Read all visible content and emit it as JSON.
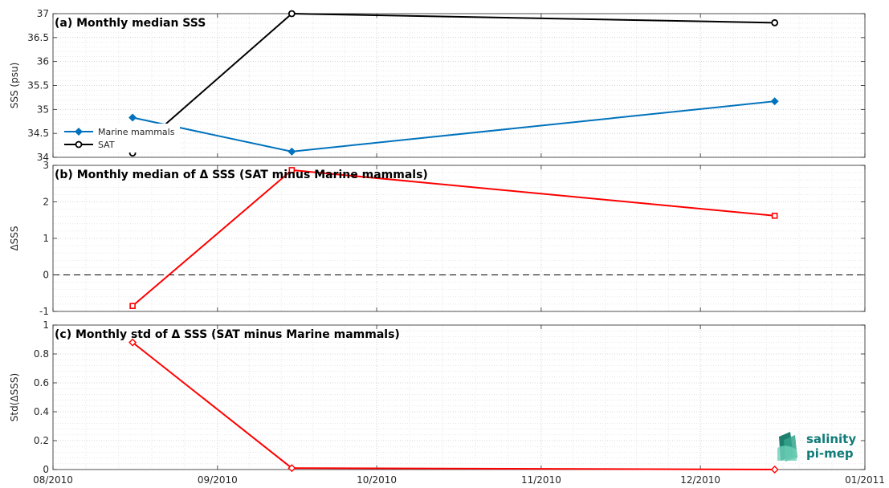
{
  "colors": {
    "blue": "#0072bd",
    "black": "#000000",
    "red": "#ff0000",
    "logo": "#0f7c78"
  },
  "logo": {
    "line1": "salinity",
    "line2": "pi-mep"
  },
  "chart_data": [
    {
      "id": "a",
      "type": "line",
      "title": "(a) Monthly median SSS",
      "ylabel": "SSS (psu)",
      "xlabel": "",
      "xlim": [
        "2010-08-01",
        "2011-01-01"
      ],
      "ylim": [
        34,
        37
      ],
      "yticks": [
        34,
        34.5,
        35,
        35.5,
        36,
        36.5,
        37
      ],
      "ytick_labels": [
        "34",
        "34.5",
        "35",
        "35.5",
        "36",
        "36.5",
        "37"
      ],
      "grid": true,
      "legend": "bottom-left",
      "series": [
        {
          "name": "Marine mammals",
          "color": "#0072bd",
          "marker": "diamond",
          "x": [
            "2010-08-16",
            "2010-09-15",
            "2010-12-15"
          ],
          "y": [
            34.83,
            34.12,
            35.17
          ]
        },
        {
          "name": "SAT",
          "color": "#000000",
          "marker": "circle",
          "x": [
            "2010-08-16",
            "2010-09-15",
            "2010-12-15"
          ],
          "y": [
            34.09,
            37.0,
            36.81
          ]
        }
      ]
    },
    {
      "id": "b",
      "type": "line",
      "title": "(b) Monthly median of Δ SSS (SAT minus Marine mammals)",
      "ylabel": "ΔSSS",
      "xlabel": "",
      "xlim": [
        "2010-08-01",
        "2011-01-01"
      ],
      "ylim": [
        -1,
        3
      ],
      "yticks": [
        -1,
        0,
        1,
        2,
        3
      ],
      "ytick_labels": [
        "-1",
        "0",
        "1",
        "2",
        "3"
      ],
      "zero_line": true,
      "grid": true,
      "series": [
        {
          "name": "",
          "color": "#ff0000",
          "marker": "square",
          "x": [
            "2010-08-16",
            "2010-09-15",
            "2010-12-15"
          ],
          "y": [
            -0.85,
            2.87,
            1.62
          ]
        }
      ]
    },
    {
      "id": "c",
      "type": "line",
      "title": "(c) Monthly std of Δ SSS (SAT minus Marine mammals)",
      "ylabel": "Std(ΔSSS)",
      "xlabel": "",
      "xlim": [
        "2010-08-01",
        "2011-01-01"
      ],
      "ylim": [
        0,
        1
      ],
      "yticks": [
        0,
        0.2,
        0.4,
        0.6,
        0.8,
        1
      ],
      "ytick_labels": [
        "0",
        "0.2",
        "0.4",
        "0.6",
        "0.8",
        "1"
      ],
      "xticks": [
        "2010-08-01",
        "2010-09-01",
        "2010-10-01",
        "2010-11-01",
        "2010-12-01",
        "2011-01-01"
      ],
      "xtick_labels": [
        "08/2010",
        "09/2010",
        "10/2010",
        "11/2010",
        "12/2010",
        "01/2011"
      ],
      "grid": true,
      "series": [
        {
          "name": "",
          "color": "#ff0000",
          "marker": "diamond",
          "x": [
            "2010-08-16",
            "2010-09-15",
            "2010-12-15"
          ],
          "y": [
            0.88,
            0.01,
            0.0
          ]
        }
      ]
    }
  ]
}
